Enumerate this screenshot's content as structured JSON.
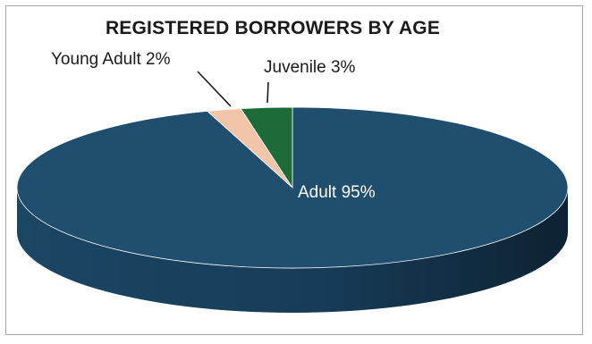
{
  "chart_data": {
    "type": "pie",
    "title": "REGISTERED BORROWERS BY AGE",
    "categories": [
      "Adult",
      "Young Adult",
      "Juvenile"
    ],
    "values": [
      95,
      2,
      3
    ],
    "data_labels": [
      "Adult 95%",
      "Young Adult 2%",
      "Juvenile 3%"
    ],
    "colors": [
      "#1f4e6e",
      "#f2c4a8",
      "#1e6b3a"
    ],
    "style": "3d",
    "legend": "none"
  }
}
